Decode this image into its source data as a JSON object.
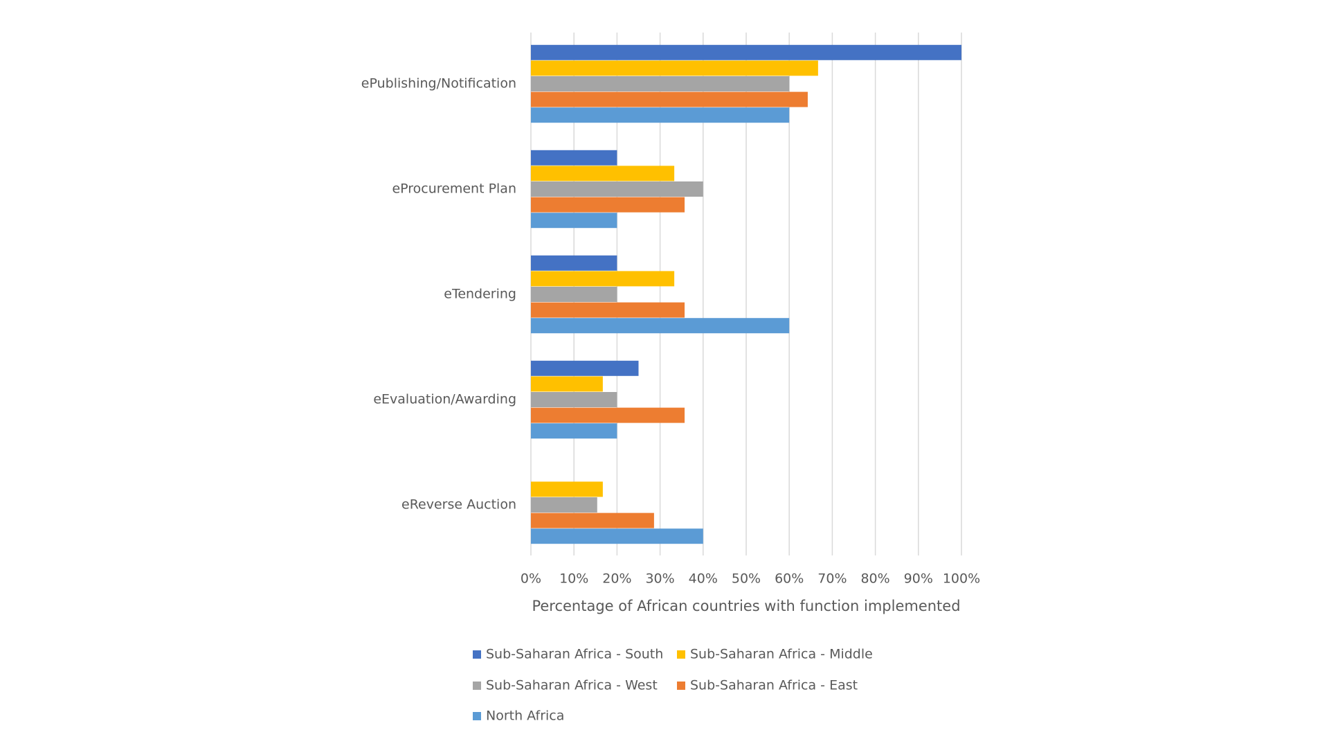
{
  "chart_data": {
    "type": "barh",
    "categories": [
      "ePublishing/Notification",
      "eProcurement Plan",
      "eTendering",
      "eEvaluation/Awarding",
      "eReverse Auction"
    ],
    "series": [
      {
        "name": "Sub-Saharan Africa - South",
        "color": "#4472c4",
        "values": [
          100,
          20,
          20,
          25,
          0
        ]
      },
      {
        "name": "Sub-Saharan Africa - Middle",
        "color": "#ffc000",
        "values": [
          66.7,
          33.3,
          33.3,
          16.7,
          16.7
        ]
      },
      {
        "name": "Sub-Saharan Africa - West",
        "color": "#a5a5a5",
        "values": [
          60,
          40,
          20,
          20,
          15.4
        ]
      },
      {
        "name": "Sub-Saharan Africa - East",
        "color": "#ed7d31",
        "values": [
          64.3,
          35.7,
          35.7,
          35.7,
          28.6
        ]
      },
      {
        "name": "North Africa",
        "color": "#5b9bd5",
        "values": [
          60,
          20,
          60,
          20,
          40
        ]
      }
    ],
    "xlabel": "Percentage of African countries with function implemented",
    "xlim": [
      0,
      100
    ],
    "xticks": [
      {
        "value": 0,
        "label": "0%"
      },
      {
        "value": 10,
        "label": "10%"
      },
      {
        "value": 20,
        "label": "20%"
      },
      {
        "value": 30,
        "label": "30%"
      },
      {
        "value": 40,
        "label": "40%"
      },
      {
        "value": 50,
        "label": "50%"
      },
      {
        "value": 60,
        "label": "60%"
      },
      {
        "value": 70,
        "label": "70%"
      },
      {
        "value": 80,
        "label": "80%"
      },
      {
        "value": 90,
        "label": "90%"
      },
      {
        "value": 100,
        "label": "100%"
      }
    ],
    "grid": true,
    "legend": "bottom"
  }
}
